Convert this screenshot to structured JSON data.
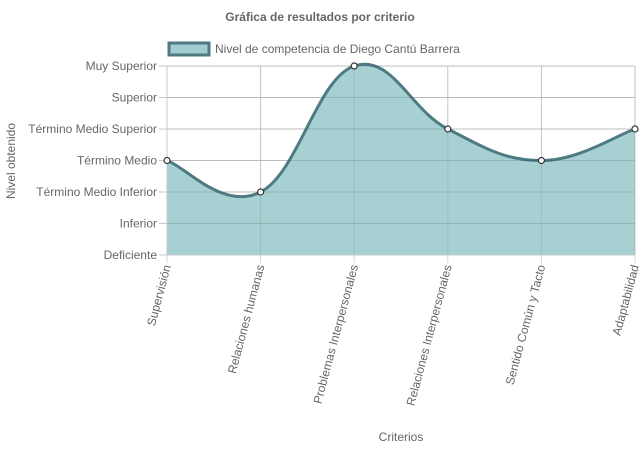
{
  "chart_data": {
    "type": "area",
    "title": "Gráfica de resultados por criterio",
    "xlabel": "Criterios",
    "ylabel": "Nivel obtenido",
    "categories": [
      "Supervisión",
      "Relaciones humanas",
      "Problemas Interpersonales",
      "Relaciones Interpersonales",
      "Sentido Común y Tacto",
      "Adaptabilidad"
    ],
    "y_levels": [
      "Deficiente",
      "Inferior",
      "Término Medio Inferior",
      "Término Medio",
      "Término Medio Superior",
      "Superior",
      "Muy Superior"
    ],
    "ylim": [
      0,
      6
    ],
    "grid": true,
    "legend_position": "top",
    "series": [
      {
        "name": "Nivel de competencia de Diego Cantú Barrera",
        "values": [
          3,
          2,
          6,
          4,
          3,
          4
        ],
        "line_color": "#4e7b83",
        "fill_color": "#a1cdd0"
      }
    ]
  }
}
